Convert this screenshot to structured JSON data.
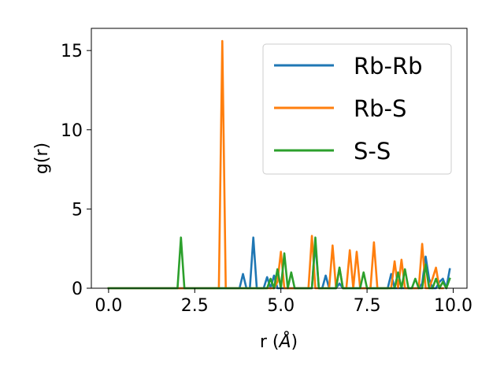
{
  "chart_data": {
    "type": "line",
    "xlabel_prefix": "r (",
    "xlabel_unit": "Å",
    "xlabel_suffix": ")",
    "ylabel": "g(r)",
    "xlim": [
      -0.5,
      10.4
    ],
    "ylim": [
      0,
      16.4
    ],
    "xticks": [
      0.0,
      2.5,
      5.0,
      7.5,
      10.0
    ],
    "xtick_labels": [
      "0.0",
      "2.5",
      "5.0",
      "7.5",
      "10.0"
    ],
    "yticks": [
      0,
      5,
      10,
      15
    ],
    "ytick_labels": [
      "0",
      "5",
      "10",
      "15"
    ],
    "grid": false,
    "legend_position": "top-right",
    "series": [
      {
        "name": "Rb-Rb",
        "color": "#1f77b4",
        "x": [
          0.0,
          3.8,
          3.9,
          4.0,
          4.1,
          4.2,
          4.3,
          4.4,
          4.5,
          4.6,
          4.7,
          4.8,
          4.9,
          5.0,
          5.1,
          5.2,
          5.3,
          5.4,
          5.5,
          5.6,
          5.7,
          5.8,
          5.9,
          6.0,
          6.1,
          6.2,
          6.3,
          6.4,
          6.5,
          6.6,
          6.7,
          6.8,
          6.9,
          7.0,
          7.1,
          7.2,
          7.3,
          7.4,
          7.5,
          7.6,
          7.7,
          7.8,
          7.9,
          8.0,
          8.1,
          8.2,
          8.3,
          8.4,
          8.5,
          8.6,
          8.7,
          8.8,
          8.9,
          9.0,
          9.1,
          9.2,
          9.3,
          9.4,
          9.5,
          9.6,
          9.7,
          9.8,
          9.9
        ],
        "y": [
          0,
          0,
          0.9,
          0,
          0,
          3.2,
          0,
          0,
          0,
          0.7,
          0,
          0.8,
          0,
          0,
          0,
          0,
          0,
          0,
          0,
          0,
          0,
          0,
          0,
          2.9,
          0,
          0,
          0.8,
          0,
          0,
          0,
          0.3,
          0,
          0,
          0,
          0,
          0,
          0,
          0,
          0,
          0,
          0,
          0,
          0,
          0,
          0,
          0.9,
          0,
          0,
          0,
          0,
          0,
          0,
          0,
          0,
          0.3,
          2.0,
          0.6,
          0,
          0,
          0.4,
          0.6,
          0,
          1.2
        ]
      },
      {
        "name": "Rb-S",
        "color": "#ff7f0e",
        "x": [
          0.0,
          3.2,
          3.3,
          3.4,
          3.5,
          4.8,
          4.9,
          5.0,
          5.1,
          5.2,
          5.3,
          5.4,
          5.5,
          5.6,
          5.7,
          5.8,
          5.9,
          6.0,
          6.1,
          6.2,
          6.3,
          6.4,
          6.5,
          6.6,
          6.7,
          6.8,
          6.9,
          7.0,
          7.1,
          7.2,
          7.3,
          7.4,
          7.5,
          7.6,
          7.7,
          7.8,
          7.9,
          8.0,
          8.1,
          8.2,
          8.3,
          8.4,
          8.5,
          8.6,
          8.7,
          8.8,
          8.9,
          9.0,
          9.1,
          9.2,
          9.3,
          9.4,
          9.5,
          9.6,
          9.7
        ],
        "y": [
          0,
          0,
          15.6,
          0,
          0,
          0,
          0.4,
          2.3,
          0,
          0,
          0,
          0,
          0,
          0,
          0,
          0,
          3.3,
          0,
          0,
          0,
          0,
          0,
          2.7,
          0,
          1.3,
          0,
          0,
          2.4,
          0,
          2.3,
          0,
          0,
          0,
          0,
          2.9,
          0,
          0,
          0,
          0,
          0,
          1.7,
          0,
          1.8,
          0,
          0,
          0,
          0,
          0,
          2.8,
          0,
          0,
          0.6,
          1.3,
          0,
          0
        ]
      },
      {
        "name": "S-S",
        "color": "#2ca02c",
        "x": [
          0.0,
          2.0,
          2.1,
          2.2,
          2.3,
          4.6,
          4.7,
          4.8,
          4.9,
          5.0,
          5.1,
          5.2,
          5.3,
          5.4,
          5.5,
          5.6,
          5.7,
          5.8,
          5.9,
          6.0,
          6.1,
          6.2,
          6.3,
          6.4,
          6.5,
          6.6,
          6.7,
          6.8,
          6.9,
          7.0,
          7.1,
          7.2,
          7.3,
          7.4,
          7.5,
          7.6,
          7.7,
          7.8,
          7.9,
          8.0,
          8.1,
          8.2,
          8.3,
          8.4,
          8.5,
          8.6,
          8.7,
          8.8,
          8.9,
          9.0,
          9.1,
          9.2,
          9.3,
          9.4,
          9.5,
          9.6,
          9.7,
          9.8,
          9.9
        ],
        "y": [
          0,
          0,
          3.2,
          0,
          0,
          0,
          0.6,
          0,
          1.2,
          0,
          2.2,
          0,
          1.0,
          0,
          0,
          0,
          0,
          0,
          0,
          3.2,
          0,
          0,
          0,
          0,
          0,
          0,
          1.3,
          0,
          0,
          0,
          0,
          0,
          0,
          1.0,
          0,
          0,
          0,
          0,
          0,
          0,
          0,
          0,
          0,
          1.0,
          0,
          1.2,
          0,
          0,
          0.6,
          0,
          0,
          1.5,
          0,
          0,
          0.6,
          0,
          0.4,
          0,
          0.6
        ]
      }
    ]
  }
}
